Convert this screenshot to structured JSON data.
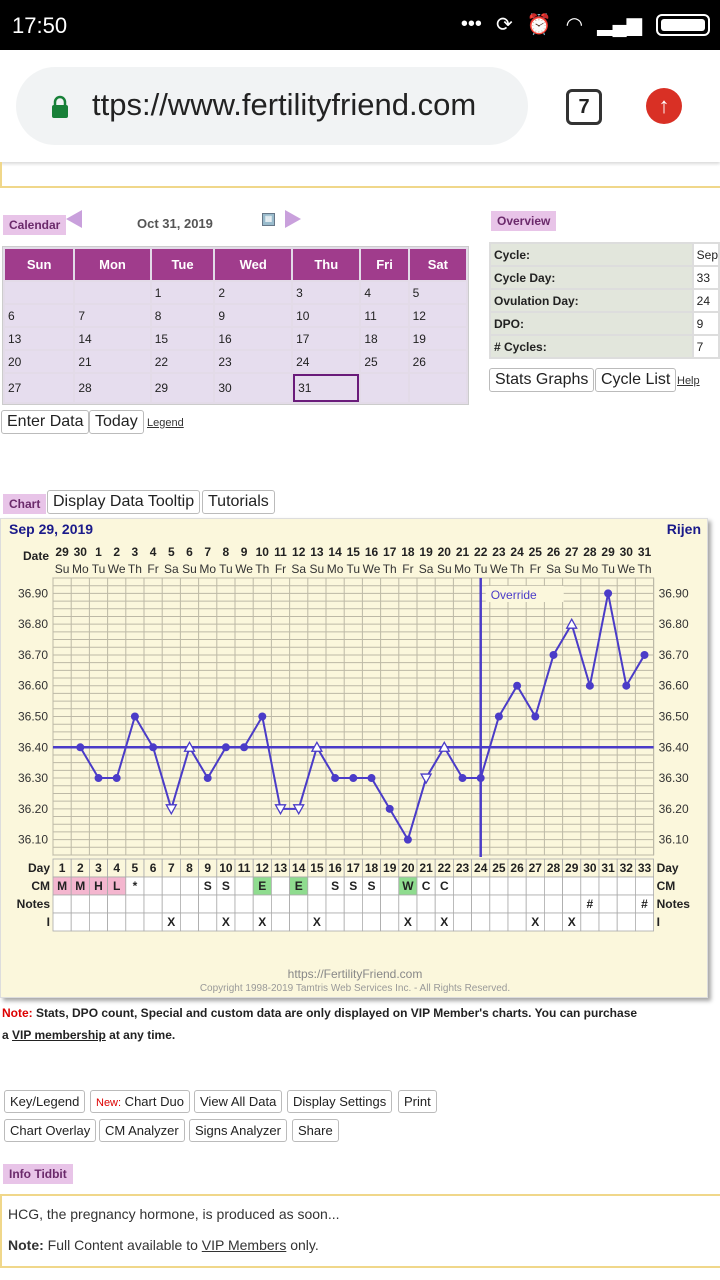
{
  "status": {
    "time": "17:50"
  },
  "browser": {
    "url": "ttps://www.fertilityfriend.com",
    "tab_count": "7"
  },
  "calendar": {
    "label": "Calendar",
    "date": "Oct 31, 2019",
    "headers": [
      "Sun",
      "Mon",
      "Tue",
      "Wed",
      "Thu",
      "Fri",
      "Sat"
    ],
    "rows": [
      [
        "",
        "",
        "1",
        "2",
        "3",
        "4",
        "5"
      ],
      [
        "6",
        "7",
        "8",
        "9",
        "10",
        "11",
        "12"
      ],
      [
        "13",
        "14",
        "15",
        "16",
        "17",
        "18",
        "19"
      ],
      [
        "20",
        "21",
        "22",
        "23",
        "24",
        "25",
        "26"
      ],
      [
        "27",
        "28",
        "29",
        "30",
        "31",
        "",
        ""
      ]
    ],
    "enter_data": "Enter Data",
    "today": "Today",
    "legend": "Legend"
  },
  "overview": {
    "label": "Overview",
    "rows": [
      {
        "k": "Cycle:",
        "v": "Sep"
      },
      {
        "k": "Cycle Day:",
        "v": "33"
      },
      {
        "k": "Ovulation Day:",
        "v": "24"
      },
      {
        "k": "DPO:",
        "v": "9"
      },
      {
        "k": "# Cycles:",
        "v": "7"
      }
    ],
    "stats_graphs": "Stats Graphs",
    "cycle_list": "Cycle List",
    "help": "Help"
  },
  "chart_section": {
    "label": "Chart",
    "tooltip_btn": "Display Data Tooltip",
    "tutorials_btn": "Tutorials"
  },
  "chart_data": {
    "type": "line",
    "title": "Sep 29, 2019",
    "owner": "Rijen",
    "date_label": "Date",
    "dates": [
      "29",
      "30",
      "1",
      "2",
      "3",
      "4",
      "5",
      "6",
      "7",
      "8",
      "9",
      "10",
      "11",
      "12",
      "13",
      "14",
      "15",
      "16",
      "17",
      "18",
      "19",
      "20",
      "21",
      "22",
      "23",
      "24",
      "25",
      "26",
      "27",
      "28",
      "29",
      "30",
      "31"
    ],
    "weekdays": [
      "Su",
      "Mo",
      "Tu",
      "We",
      "Th",
      "Fr",
      "Sa",
      "Su",
      "Mo",
      "Tu",
      "We",
      "Th",
      "Fr",
      "Sa",
      "Su",
      "Mo",
      "Tu",
      "We",
      "Th",
      "Fr",
      "Sa",
      "Su",
      "Mo",
      "Tu",
      "We",
      "Th",
      "Fr",
      "Sa",
      "Su",
      "Mo",
      "Tu",
      "We",
      "Th"
    ],
    "y_ticks": [
      "36.90",
      "36.80",
      "36.70",
      "36.60",
      "36.50",
      "36.40",
      "36.30",
      "36.20",
      "36.10"
    ],
    "ylim": [
      36.05,
      36.95
    ],
    "days": [
      1,
      2,
      3,
      4,
      5,
      6,
      7,
      8,
      9,
      10,
      11,
      12,
      13,
      14,
      15,
      16,
      17,
      18,
      19,
      20,
      21,
      22,
      23,
      24,
      25,
      26,
      27,
      28,
      29,
      30,
      31,
      32,
      33
    ],
    "temps": [
      null,
      36.4,
      36.3,
      36.3,
      36.5,
      36.4,
      36.2,
      36.4,
      36.3,
      36.4,
      36.4,
      36.5,
      36.2,
      36.2,
      36.4,
      36.3,
      36.3,
      36.3,
      36.2,
      36.1,
      36.3,
      36.4,
      36.3,
      36.3,
      36.5,
      36.6,
      36.5,
      36.7,
      36.8,
      36.6,
      36.9,
      36.6,
      36.7
    ],
    "open_points": [
      7,
      8,
      13,
      14,
      15,
      21,
      22,
      29
    ],
    "coverline": 36.4,
    "ovulation_day": 24,
    "override_label": "Override",
    "row_labels": {
      "day": "Day",
      "cm": "CM",
      "notes": "Notes",
      "i": "I"
    },
    "cm": [
      "M",
      "M",
      "H",
      "L",
      "*",
      "",
      "",
      "",
      "S",
      "S",
      "",
      "E",
      "",
      "E",
      "",
      "S",
      "S",
      "S",
      "",
      "W",
      "C",
      "C",
      "",
      "",
      "",
      "",
      "",
      "",
      "",
      "",
      "",
      "",
      ""
    ],
    "notes": [
      "",
      "",
      "",
      "",
      "",
      "",
      "",
      "",
      "",
      "",
      "",
      "",
      "",
      "",
      "",
      "",
      "",
      "",
      "",
      "",
      "",
      "",
      "",
      "",
      "",
      "",
      "",
      "",
      "",
      "#",
      "",
      "",
      "#"
    ],
    "intercourse": [
      "",
      "",
      "",
      "",
      "",
      "",
      "X",
      "",
      "",
      "X",
      "",
      "X",
      "",
      "",
      "X",
      "",
      "",
      "",
      "",
      "X",
      "",
      "X",
      "",
      "",
      "",
      "",
      "X",
      "",
      "X",
      "",
      "",
      "",
      ""
    ],
    "footer_url": "https://FertilityFriend.com",
    "copyright": "Copyright 1998-2019 Tamtris Web Services Inc. - All Rights Reserved."
  },
  "note": {
    "prefix": "Note:",
    "text1": " Stats, DPO count, Special and custom data are only displayed on VIP Member's charts. You can purchase",
    "text2_a": "a ",
    "vip_link": "VIP membership",
    "text2_b": " at any time."
  },
  "buttons": {
    "key_legend": "Key/Legend",
    "new_tag": "New:",
    "chart_duo": " Chart Duo",
    "view_all": "View All Data",
    "display_settings": "Display Settings",
    "print": "Print",
    "chart_overlay": "Chart Overlay",
    "cm_analyzer": "CM Analyzer",
    "signs_analyzer": "Signs Analyzer",
    "share": "Share"
  },
  "info": {
    "label": "Info Tidbit",
    "line1": "HCG, the pregnancy hormone, is produced as soon...",
    "note_prefix": "Note:",
    "line2_a": " Full Content available to ",
    "vip_members": "VIP Members",
    "line2_b": " only."
  },
  "colors": {
    "accent": "#a03c8c",
    "line": "#4b3cc8",
    "chart_bg": "#fbf7dc"
  }
}
